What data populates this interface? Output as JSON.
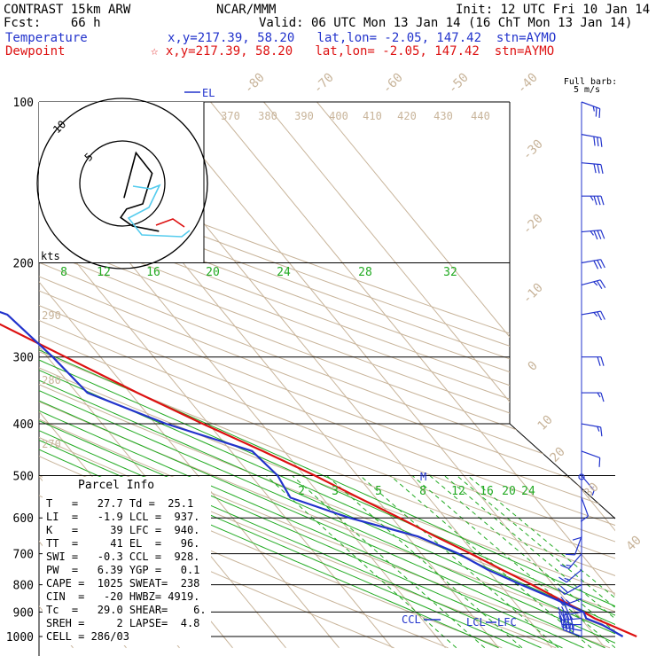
{
  "header": {
    "title": "CONTRAST 15km ARW",
    "forecast": "Fcst:    66 h",
    "source": "NCAR/MMM",
    "init": "Init: 12 UTC Fri 10 Jan 14",
    "valid": "Valid: 06 UTC Mon 13 Jan 14 (16 ChT Mon 13 Jan 14)",
    "temperature_label": "Temperature",
    "dewpoint_label": "Dewpoint",
    "temp_point": "x,y=217.39, 58.20   lat,lon= -2.05, 147.42  stn=AYMO",
    "dew_point": "☆ x,y=217.39, 58.20   lat,lon= -2.05, 147.42  stn=AYMO"
  },
  "colors": {
    "temperature": "#dd1111",
    "dewpoint": "#2233cc",
    "isotherm": "#c8b49a",
    "mixing_ratio": "#22aa22",
    "moist_adiabat": "#22aa22",
    "isobar": "#000000",
    "hodo_low": "#55ccee",
    "hodo_high": "#dd1111"
  },
  "labels": {
    "el": "EL",
    "ccl": "CCL",
    "lcl": "LCL",
    "lfc": "LFC",
    "m": "M",
    "full_barb": "Full barb:",
    "full_barb_unit": "5 m/s",
    "kts": "kts",
    "hodo_ring_10": "10",
    "hodo_ring_5": "5"
  },
  "parcel_info": {
    "title": "Parcel Info",
    "rows": [
      "T   =   27.7 Td =  25.1",
      "LI  =   -1.9 LCL =  937.",
      "K   =     39 LFC =  940.",
      "TT  =     41 EL  =   96.",
      "SWI =   -0.3 CCL =  928.",
      "PW  =   6.39 YGP =   0.1",
      "CAPE =  1025 SWEAT=  238",
      "CIN  =   -20 HWBZ= 4919.",
      "Tc  =   29.0 SHEAR=    6.",
      "SREH =     2 LAPSE=  4.8",
      "CELL = 286/03"
    ]
  },
  "chart_data": {
    "type": "line",
    "title": "",
    "xlabel": "",
    "ylabel": "",
    "y_axis": "pressure (hPa, log scale, inverted)",
    "pressure_ticks": [
      100,
      200,
      300,
      400,
      500,
      600,
      700,
      800,
      900,
      1000
    ],
    "isotherm_labels": [
      40,
      30,
      20,
      10,
      0,
      -10,
      -20,
      -30,
      -40,
      -50,
      -60,
      -70,
      -80
    ],
    "theta_labels": [
      270,
      280,
      290,
      370,
      380,
      390,
      400,
      410,
      420,
      430,
      440
    ],
    "mixing_ratio_labels_upper": [
      8,
      12,
      16,
      20,
      24,
      28,
      32
    ],
    "mixing_ratio_labels_lower": [
      2,
      3,
      5,
      8,
      12,
      16,
      20,
      24
    ],
    "series": [
      {
        "name": "Temperature",
        "pressure": [
          1000,
          950,
          925,
          900,
          850,
          800,
          750,
          700,
          650,
          600,
          550,
          500,
          450,
          400,
          350,
          300,
          250,
          200,
          150,
          120,
          100
        ],
        "value": [
          27.7,
          24.4,
          22.6,
          21.5,
          18.8,
          16.0,
          12.7,
          9.3,
          5.3,
          1.4,
          -3.2,
          -8.0,
          -14.0,
          -21.1,
          -28.6,
          -36.6,
          -46.0,
          -57.6,
          -69.5,
          -78.0,
          -82.5
        ]
      },
      {
        "name": "Dewpoint",
        "pressure": [
          1000,
          950,
          925,
          900,
          850,
          800,
          750,
          700,
          650,
          600,
          550,
          500,
          450,
          400,
          350,
          300,
          250,
          200,
          150,
          120,
          100
        ],
        "value": [
          25.1,
          23.0,
          21.0,
          21.5,
          18.0,
          14.0,
          10.0,
          7.0,
          2.0,
          -8.0,
          -16.0,
          -15.0,
          -16.0,
          -28.0,
          -38.0,
          -39.0,
          -41.0,
          -60.0,
          -76.0,
          -86.0,
          -88.0
        ]
      }
    ],
    "wind_barbs": [
      {
        "p": 1000,
        "dir": 290,
        "kt": 8
      },
      {
        "p": 975,
        "dir": 280,
        "kt": 8
      },
      {
        "p": 950,
        "dir": 270,
        "kt": 8
      },
      {
        "p": 925,
        "dir": 265,
        "kt": 7
      },
      {
        "p": 900,
        "dir": 260,
        "kt": 6
      },
      {
        "p": 850,
        "dir": 250,
        "kt": 5
      },
      {
        "p": 800,
        "dir": 240,
        "kt": 4
      },
      {
        "p": 750,
        "dir": 230,
        "kt": 3
      },
      {
        "p": 700,
        "dir": 220,
        "kt": 3
      },
      {
        "p": 650,
        "dir": 200,
        "kt": 2
      },
      {
        "p": 600,
        "dir": 180,
        "kt": 2
      },
      {
        "p": 550,
        "dir": 160,
        "kt": 2
      },
      {
        "p": 500,
        "dir": 140,
        "kt": 1
      },
      {
        "p": 450,
        "dir": 110,
        "kt": 2
      },
      {
        "p": 400,
        "dir": 100,
        "kt": 3
      },
      {
        "p": 350,
        "dir": 90,
        "kt": 3
      },
      {
        "p": 300,
        "dir": 90,
        "kt": 4
      },
      {
        "p": 250,
        "dir": 80,
        "kt": 5
      },
      {
        "p": 220,
        "dir": 75,
        "kt": 5
      },
      {
        "p": 200,
        "dir": 80,
        "kt": 6
      },
      {
        "p": 175,
        "dir": 85,
        "kt": 7
      },
      {
        "p": 150,
        "dir": 90,
        "kt": 7
      },
      {
        "p": 130,
        "dir": 95,
        "kt": 6
      },
      {
        "p": 115,
        "dir": 100,
        "kt": 6
      },
      {
        "p": 100,
        "dir": 110,
        "kt": 5
      }
    ],
    "hodograph_rings_kt": [
      5,
      10
    ],
    "hodograph": [
      {
        "u": 0.2,
        "v": -1.7
      },
      {
        "u": 1.6,
        "v": 3.6
      },
      {
        "u": 3.5,
        "v": 1.2
      },
      {
        "u": 2.4,
        "v": -2.4
      },
      {
        "u": 0.5,
        "v": -3.0
      },
      {
        "u": -0.2,
        "v": -4.0
      },
      {
        "u": 1.2,
        "v": -5.0
      },
      {
        "u": 4.3,
        "v": -5.6
      },
      {
        "u": 5.2,
        "v": -3.8
      },
      {
        "u": 5.4,
        "v": -5.7
      },
      {
        "u": 2.9,
        "v": -5.0
      }
    ]
  }
}
